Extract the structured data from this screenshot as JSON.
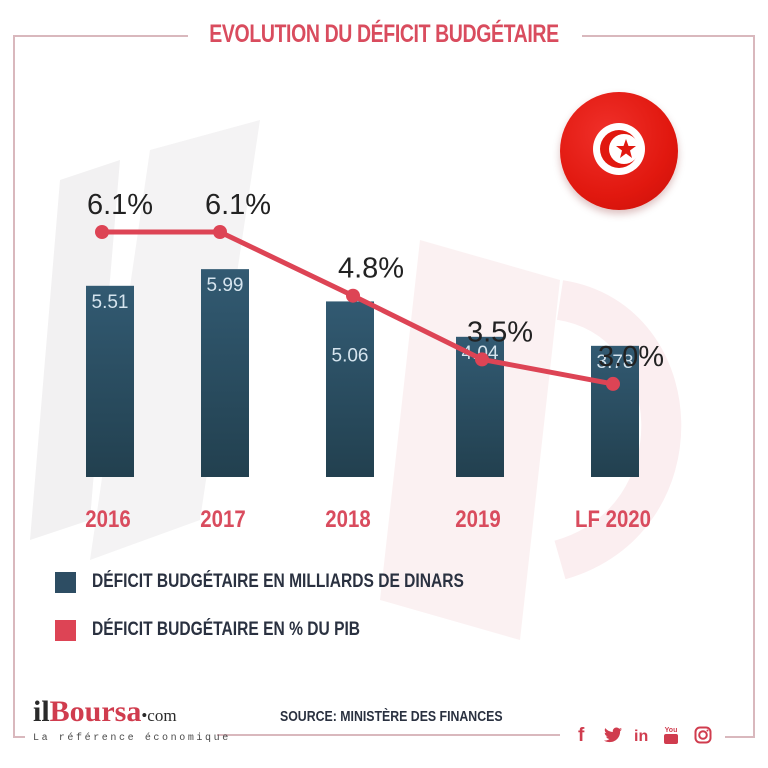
{
  "header": {
    "title": "EVOLUTION DU DÉFICIT BUDGÉTAIRE"
  },
  "colors": {
    "bar": "#2d4d63",
    "line": "#dd4455",
    "accent": "#d94c5e",
    "text_dark": "#2a3140",
    "flag_red": "#e1180f"
  },
  "flag": {
    "icon": "tunisia-flag-icon"
  },
  "chart_data": {
    "type": "bar",
    "title": "EVOLUTION DU DÉFICIT BUDGÉTAIRE",
    "xlabel": "",
    "ylabel": "",
    "categories": [
      "2016",
      "2017",
      "2018",
      "2019",
      "LF 2020"
    ],
    "series": [
      {
        "name": "DÉFICIT BUDGÉTAIRE EN MILLIARDS DE DINARS",
        "type": "bar",
        "values": [
          5.51,
          5.99,
          5.06,
          4.04,
          3.78
        ],
        "labels": [
          "5.51",
          "5.99",
          "5.06",
          "4.04",
          "3.78"
        ]
      },
      {
        "name": "DÉFICIT BUDGÉTAIRE EN % DU PIB",
        "type": "line",
        "values": [
          6.1,
          6.1,
          4.8,
          3.5,
          3.0
        ],
        "labels": [
          "6.1%",
          "6.1%",
          "4.8%",
          "3.5%",
          "3.0%"
        ]
      }
    ],
    "grid": false,
    "legend": "bottom-left"
  },
  "legend": {
    "items": [
      {
        "label": "DÉFICIT BUDGÉTAIRE EN MILLIARDS DE DINARS",
        "color": "#2d4d63"
      },
      {
        "label": "DÉFICIT BUDGÉTAIRE EN % DU PIB",
        "color": "#dd4455"
      }
    ]
  },
  "footer": {
    "logo_il": "il",
    "logo_boursa": "Boursa",
    "logo_com": "•com",
    "tagline": "La référence économique",
    "source": "SOURCE: MINISTÈRE DES FINANCES",
    "social": [
      {
        "name": "facebook-icon",
        "glyph": "f"
      },
      {
        "name": "twitter-icon",
        "glyph": "🐦"
      },
      {
        "name": "linkedin-icon",
        "glyph": "in"
      },
      {
        "name": "youtube-icon",
        "glyph": "You"
      },
      {
        "name": "instagram-icon",
        "glyph": "◎"
      }
    ]
  }
}
